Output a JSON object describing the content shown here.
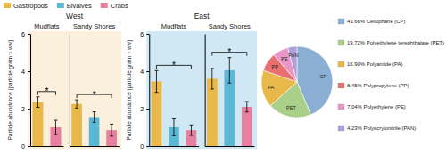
{
  "chart_data": [
    {
      "type": "bar",
      "categories": [
        "Mudflats",
        "Sandy Shores",
        "Mudflats",
        "Sandy Shores"
      ],
      "series": [
        {
          "name": "Gastropods",
          "color": "#E8B84B",
          "values": [
            2.35,
            2.25,
            3.45,
            3.6
          ],
          "errors": [
            0.28,
            0.22,
            0.58,
            0.55
          ]
        },
        {
          "name": "Bivalves",
          "color": "#5BB8D4",
          "values": [
            null,
            1.55,
            1.0,
            4.05
          ],
          "errors": [
            null,
            0.28,
            0.45,
            0.68
          ]
        },
        {
          "name": "Crabs",
          "color": "#E87FA0",
          "values": [
            1.0,
            0.85,
            0.85,
            2.1
          ],
          "errors": [
            0.38,
            0.32,
            0.28,
            0.28
          ]
        }
      ],
      "ylabel": "Particle abundance (particle gram⁻¹ ww)",
      "ylim": [
        0,
        6
      ],
      "yticks": [
        0,
        2,
        4,
        6
      ],
      "tick_labels": "y",
      "grid": false,
      "legend": "top-left",
      "annotations": [
        {
          "text": "West",
          "categories": [
            0,
            1
          ],
          "color": "#FAF0DC"
        },
        {
          "text": "East",
          "categories": [
            2,
            3
          ],
          "color": "#D0E8F4"
        },
        {
          "text": "*",
          "category": 0,
          "series": [
            0,
            2
          ]
        },
        {
          "text": "*",
          "category": 1,
          "series": [
            0,
            2
          ]
        },
        {
          "text": "*",
          "category": 2,
          "series": [
            0,
            2
          ]
        },
        {
          "text": "*",
          "category": 3,
          "series": [
            0,
            2
          ]
        }
      ]
    },
    {
      "type": "pie",
      "categories": [
        "CP",
        "PET",
        "PA",
        "PP",
        "PE",
        "PAN"
      ],
      "values": [
        43.66,
        19.72,
        16.9,
        8.45,
        7.04,
        4.23
      ],
      "colors": [
        "#8BAED4",
        "#AACF88",
        "#E8B84B",
        "#E87070",
        "#E895C8",
        "#B0A0D8"
      ],
      "value_labels": [
        "43.66%  Cellophane (CP)",
        "19.72%  Polyethylene terephthalate (PET)",
        "16.90%  Polyamide (PA)",
        "8.45%  Polypropylene (PP)",
        "7.04%  Polyethylene (PE)",
        "4.23%  Polyacrylonitrile (PAN)"
      ],
      "legend": "right"
    }
  ]
}
